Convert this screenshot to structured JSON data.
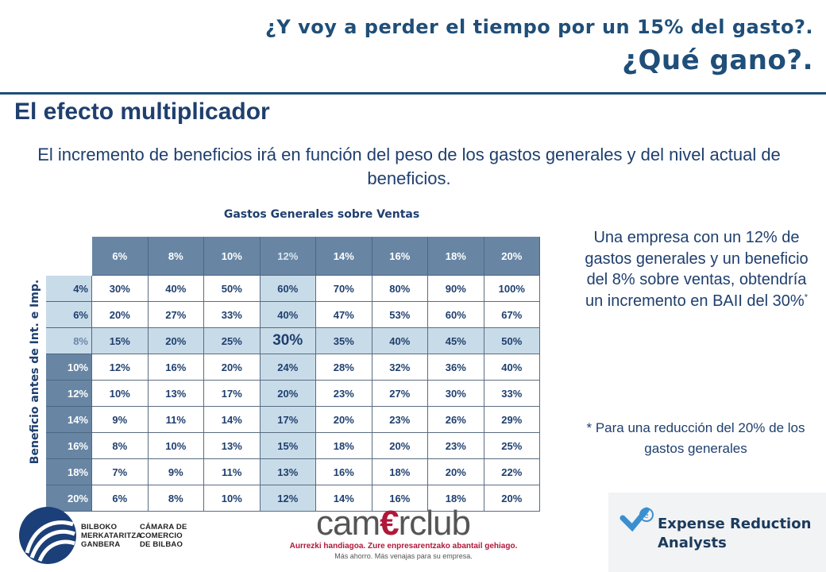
{
  "header": {
    "title_line1": "¿Y voy a perder el tiempo por un 15% del gasto?.",
    "title_line2": "¿Qué gano?."
  },
  "section_title": "El efecto multiplicador",
  "intro": "El incremento de beneficios irá en función del peso de los gastos generales y del nivel actual de beneficios.",
  "table": {
    "title": "Gastos Generales sobre Ventas",
    "row_axis_label": "Beneficio antes de Int. e Imp.",
    "columns": [
      "6%",
      "8%",
      "10%",
      "12%",
      "14%",
      "16%",
      "18%",
      "20%"
    ],
    "rows": [
      {
        "label": "4%",
        "values": [
          "30%",
          "40%",
          "50%",
          "60%",
          "70%",
          "80%",
          "90%",
          "100%"
        ]
      },
      {
        "label": "6%",
        "values": [
          "20%",
          "27%",
          "33%",
          "40%",
          "47%",
          "53%",
          "60%",
          "67%"
        ]
      },
      {
        "label": "8%",
        "values": [
          "15%",
          "20%",
          "25%",
          "30%",
          "35%",
          "40%",
          "45%",
          "50%"
        ]
      },
      {
        "label": "10%",
        "values": [
          "12%",
          "16%",
          "20%",
          "24%",
          "28%",
          "32%",
          "36%",
          "40%"
        ]
      },
      {
        "label": "12%",
        "values": [
          "10%",
          "13%",
          "17%",
          "20%",
          "23%",
          "27%",
          "30%",
          "33%"
        ]
      },
      {
        "label": "14%",
        "values": [
          "9%",
          "11%",
          "14%",
          "17%",
          "20%",
          "23%",
          "26%",
          "29%"
        ]
      },
      {
        "label": "16%",
        "values": [
          "8%",
          "10%",
          "13%",
          "15%",
          "18%",
          "20%",
          "23%",
          "25%"
        ]
      },
      {
        "label": "18%",
        "values": [
          "7%",
          "9%",
          "11%",
          "13%",
          "16%",
          "18%",
          "20%",
          "22%"
        ]
      },
      {
        "label": "20%",
        "values": [
          "6%",
          "8%",
          "10%",
          "12%",
          "14%",
          "16%",
          "18%",
          "20%"
        ]
      }
    ],
    "highlight_col": 3,
    "highlight_row": 2,
    "colors": {
      "header": "#6886a4",
      "highlight": "#c8dbe8",
      "text": "#1f3f6e"
    }
  },
  "sidebar": {
    "text": "Una empresa con un 12% de gastos generales y un beneficio del 8% sobre ventas, obtendría un incremento en BAII del 30%",
    "footnote_mark": "*",
    "note": "* Para una reducción del 20% de los gastos generales"
  },
  "logos": {
    "bilbao": {
      "line1": "BILBOKO",
      "line2": "MERKATARITZA",
      "line3": "GANBERA",
      "line4": "CÁMARA DE",
      "line5": "COMERCIO",
      "line6": "DE BILBAO"
    },
    "camerclub": {
      "brand_pre": "cam",
      "brand_e": "€",
      "brand_post": "rclub",
      "slogan1": "Aurrezki handiagoa. Zure enpresarentzako abantail gehiago.",
      "slogan2": "Más ahorro. Más venajas para su empresa."
    },
    "era": {
      "line1": "Expense Reduction",
      "line2": "Analysts"
    }
  }
}
